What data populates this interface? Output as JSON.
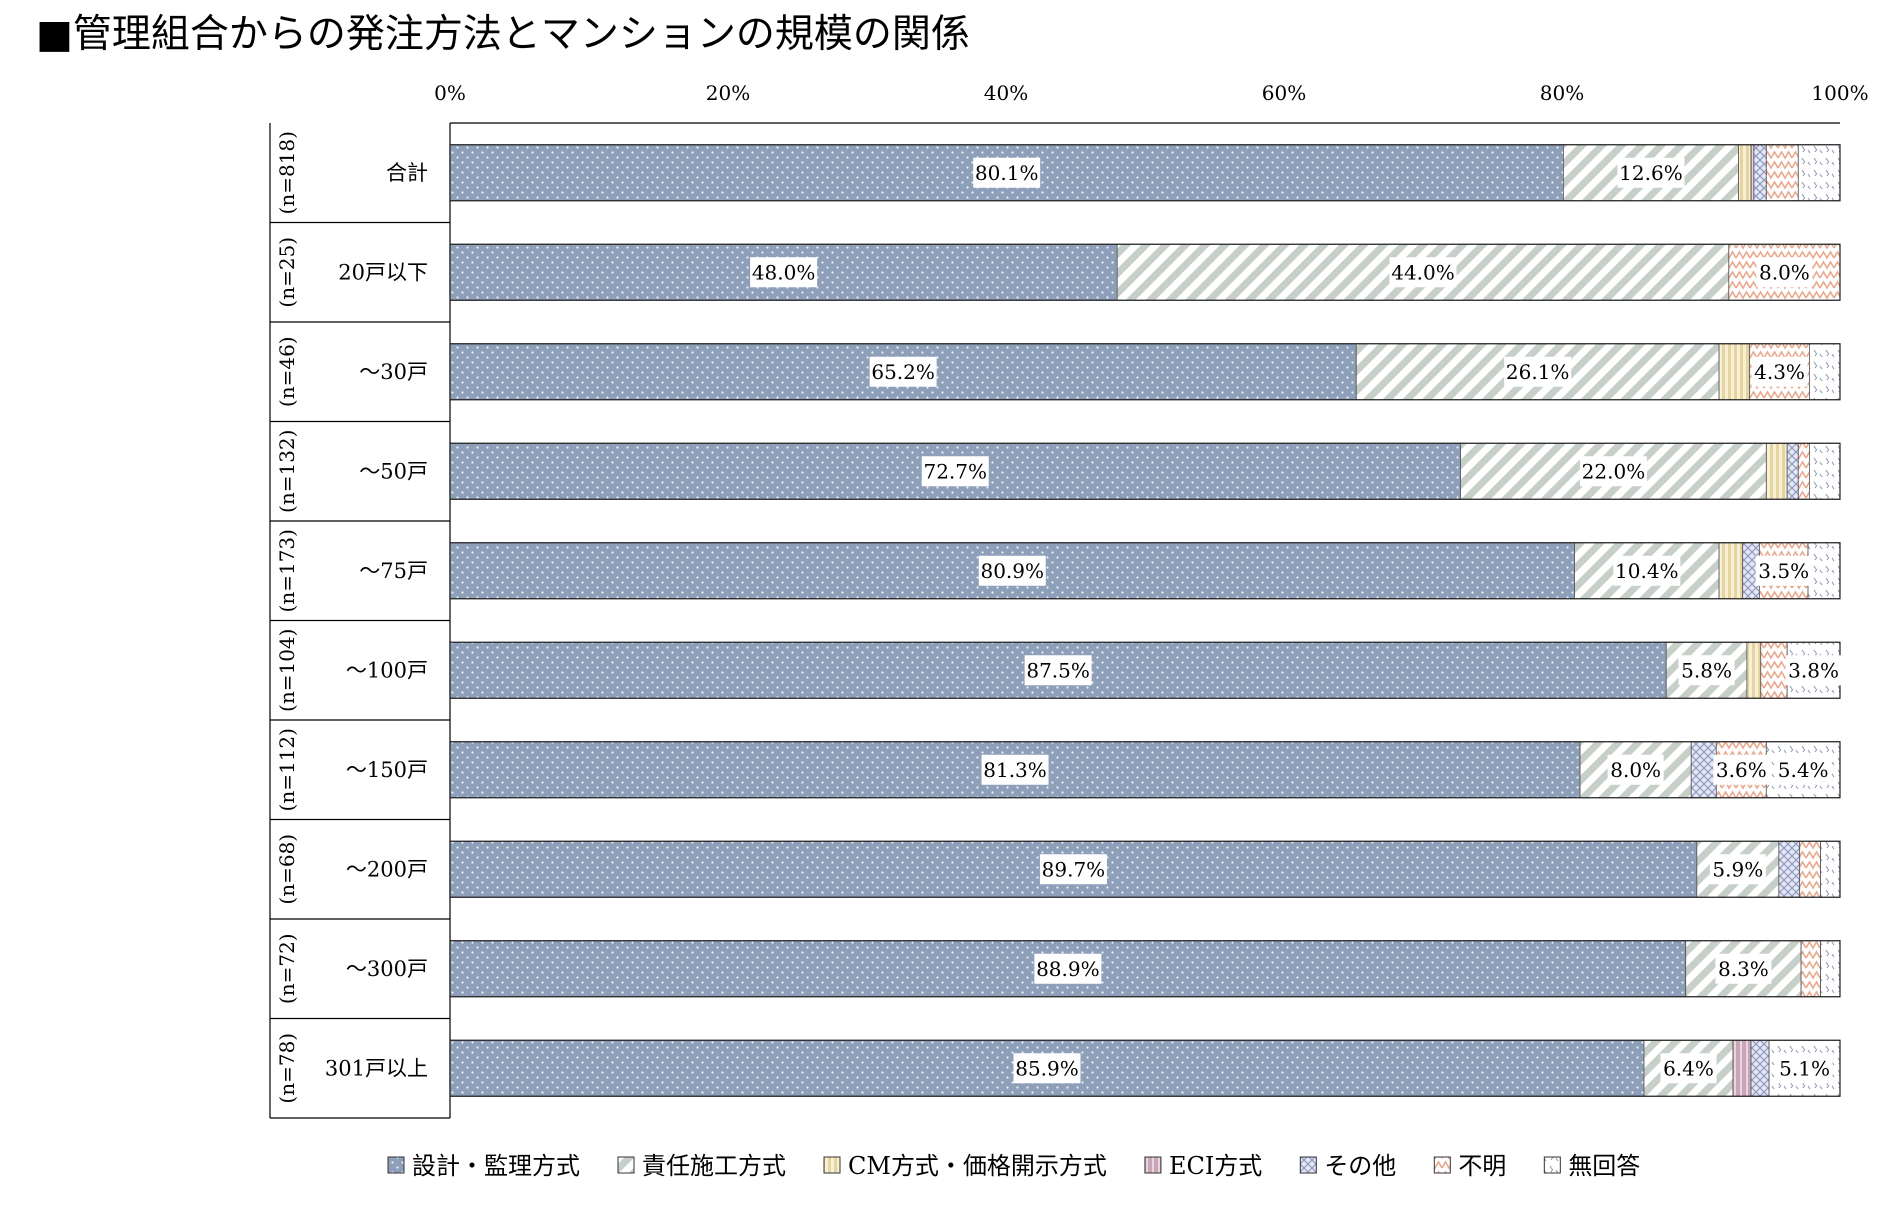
{
  "chart_data": {
    "type": "bar",
    "orientation": "horizontal",
    "stacked": true,
    "title": "■管理組合からの発注方法とマンションの規模の関係",
    "xlim": [
      0,
      100
    ],
    "x_ticks": [
      "0%",
      "20%",
      "40%",
      "60%",
      "80%",
      "100%"
    ],
    "categories": [
      "合計",
      "20戸以下",
      "～30戸",
      "～50戸",
      "～75戸",
      "～100戸",
      "～150戸",
      "～200戸",
      "～300戸",
      "301戸以上"
    ],
    "sample_sizes": [
      "(n=818)",
      "(n=25)",
      "(n=46)",
      "(n=132)",
      "(n=173)",
      "(n=104)",
      "(n=112)",
      "(n=68)",
      "(n=72)",
      "(n=78)"
    ],
    "series": [
      {
        "name": "設計・監理方式",
        "color": "#8e9fba",
        "pattern": "dots",
        "values": [
          80.1,
          48.0,
          65.2,
          72.7,
          80.9,
          87.5,
          81.3,
          89.7,
          88.9,
          85.9
        ],
        "labels": [
          "80.1%",
          "48.0%",
          "65.2%",
          "72.7%",
          "80.9%",
          "87.5%",
          "81.3%",
          "89.7%",
          "88.9%",
          "85.9%"
        ]
      },
      {
        "name": "責任施工方式",
        "color": "#c7d0c8",
        "pattern": "diagonal",
        "values": [
          12.6,
          44.0,
          26.1,
          22.0,
          10.4,
          5.8,
          8.0,
          5.9,
          8.3,
          6.4
        ],
        "labels": [
          "12.6%",
          "44.0%",
          "26.1%",
          "22.0%",
          "10.4%",
          "5.8%",
          "8.0%",
          "5.9%",
          "8.3%",
          "6.4%"
        ]
      },
      {
        "name": "CM方式・価格開示方式",
        "color": "#e5d8a5",
        "pattern": "vertical",
        "values": [
          0.9,
          0,
          2.2,
          1.5,
          1.7,
          1.0,
          0,
          0,
          0,
          0
        ],
        "labels": [
          "",
          "",
          "",
          "",
          "",
          "",
          "",
          "",
          "",
          ""
        ]
      },
      {
        "name": "ECI方式",
        "color": "#c9a6b7",
        "pattern": "solid",
        "values": [
          0.2,
          0,
          0,
          0,
          0,
          0,
          0,
          0,
          0,
          1.3
        ],
        "labels": [
          "",
          "",
          "",
          "",
          "",
          "",
          "",
          "",
          "",
          ""
        ]
      },
      {
        "name": "その他",
        "color": "#a9b1d0",
        "pattern": "crosshatch",
        "values": [
          0.9,
          0,
          0,
          0.8,
          1.2,
          0,
          1.8,
          1.5,
          0,
          1.3
        ],
        "labels": [
          "",
          "",
          "",
          "",
          "",
          "",
          "",
          "",
          "",
          ""
        ]
      },
      {
        "name": "不明",
        "color": "#ecb8a3",
        "pattern": "zigzag",
        "values": [
          2.3,
          8.0,
          4.3,
          0.8,
          3.5,
          1.9,
          3.6,
          1.5,
          1.4,
          0
        ],
        "labels": [
          "",
          "8.0%",
          "4.3%",
          "",
          "3.5%",
          "",
          "3.6%",
          "",
          "",
          ""
        ]
      },
      {
        "name": "無回答",
        "color": "#b3bccc",
        "pattern": "sparse-dots",
        "values": [
          3.0,
          0,
          2.2,
          2.3,
          2.3,
          3.8,
          5.4,
          2.9,
          1.4,
          5.1
        ],
        "labels": [
          "",
          "",
          "",
          "",
          "",
          "3.8%",
          "5.4%",
          "",
          "",
          "5.1%"
        ]
      }
    ],
    "legend_position": "bottom",
    "grid": false
  }
}
